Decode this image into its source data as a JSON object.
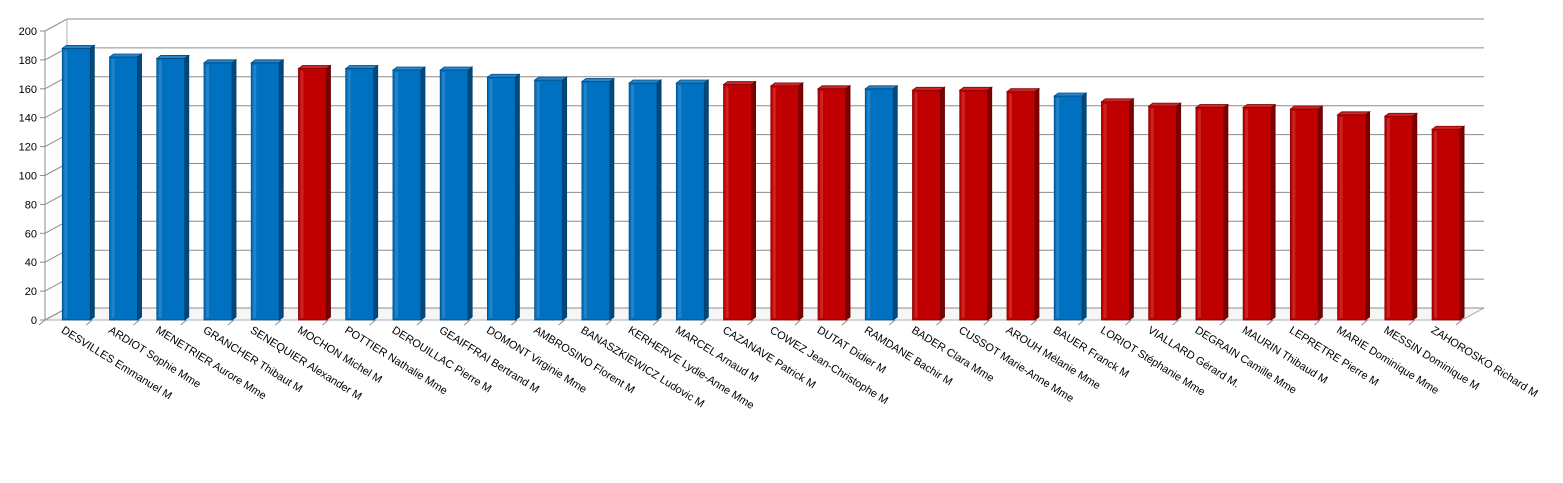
{
  "chart_data": {
    "type": "bar",
    "title": "",
    "xlabel": "",
    "ylabel": "",
    "ylim": [
      0,
      200
    ],
    "yticks": [
      0,
      20,
      40,
      60,
      80,
      100,
      120,
      140,
      160,
      180,
      200
    ],
    "grid": true,
    "legend": "none",
    "colors": {
      "blue": "#0070c0",
      "red": "#c00000"
    },
    "categories": [
      "DESVILLES Emmanuel M",
      "ARDIOT Sophie Mme",
      "MENETRIER Aurore Mme",
      "GRANCHER Thibaut M",
      "SENEQUIER Alexander M",
      "MOCHON Michel M",
      "POTTIER Nathalie Mme",
      "DEROUILLAC Pierre M",
      "GEAIFFRAI Bertrand M",
      "DOMONT Virginie Mme",
      "AMBROSINO Florent M",
      "BANASZKIEWICZ Ludovic M",
      "KERHERVE Lydie-Anne Mme",
      "MARCEL Arnaud M",
      "CAZANAVE Patrick M",
      "COWEZ Jean-Christophe M",
      "DUTAT Didier M",
      "RAMDANE Bachir M",
      "BADER Clara Mme",
      "CUSSOT Marie-Anne Mme",
      "AROUH Mélanie Mme",
      "BAUER Franck M",
      "LORIOT Stéphanie Mme",
      "VIALLARD Gérard M.",
      "DEGRAIN Camille Mme",
      "MAURIN Thibaud M",
      "LEPRETRE Pierre M",
      "MARIE Dominique Mme",
      "MESSIN Dominique M",
      "ZAHOROSKO Richard M"
    ],
    "values": [
      188,
      182,
      181,
      178,
      178,
      174,
      174,
      173,
      173,
      168,
      166,
      165,
      164,
      164,
      163,
      162,
      160,
      160,
      159,
      159,
      158,
      155,
      151,
      148,
      147,
      147,
      146,
      142,
      141,
      132
    ],
    "bar_colors": [
      "blue",
      "blue",
      "blue",
      "blue",
      "blue",
      "red",
      "blue",
      "blue",
      "blue",
      "blue",
      "blue",
      "blue",
      "blue",
      "blue",
      "red",
      "red",
      "red",
      "blue",
      "red",
      "red",
      "red",
      "blue",
      "red",
      "red",
      "red",
      "red",
      "red",
      "red",
      "red",
      "red"
    ]
  }
}
